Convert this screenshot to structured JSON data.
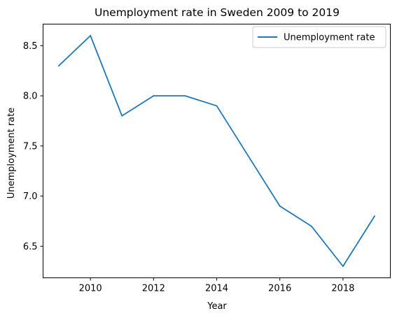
{
  "chart_data": {
    "type": "line",
    "title": "Unemployment rate in Sweden 2009 to 2019",
    "xlabel": "Year",
    "ylabel": "Unemployment rate",
    "x": [
      2009,
      2010,
      2011,
      2012,
      2013,
      2014,
      2015,
      2016,
      2017,
      2018,
      2019
    ],
    "series": [
      {
        "name": "Unemployment rate",
        "values": [
          8.3,
          8.6,
          7.8,
          8.0,
          8.0,
          7.9,
          7.4,
          6.9,
          6.7,
          6.3,
          6.8
        ],
        "color": "#1f77b4"
      }
    ],
    "xlim": [
      2008.5,
      2019.5
    ],
    "ylim": [
      6.185,
      8.715
    ],
    "xticks": [
      2010,
      2012,
      2014,
      2016,
      2018
    ],
    "xtick_labels": [
      "2010",
      "2012",
      "2014",
      "2016",
      "2018"
    ],
    "yticks": [
      6.5,
      7.0,
      7.5,
      8.0,
      8.5
    ],
    "ytick_labels": [
      "6.5",
      "7.0",
      "7.5",
      "8.0",
      "8.5"
    ],
    "grid": false,
    "legend_position": "top-right"
  }
}
